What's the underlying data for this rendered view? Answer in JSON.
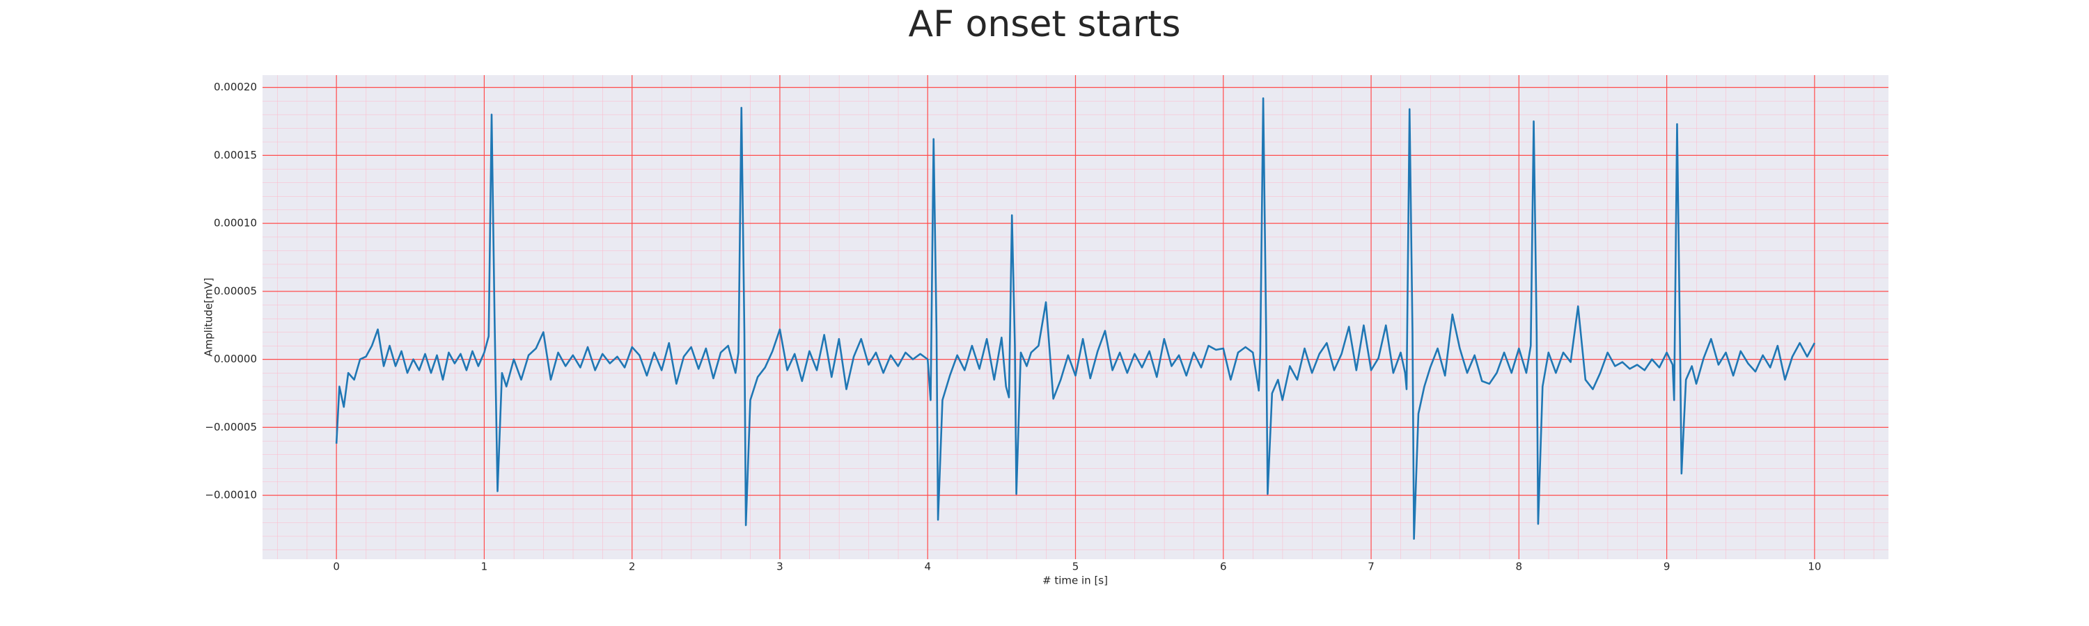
{
  "chart_data": {
    "type": "line",
    "title": "AF onset starts",
    "x_label": "# time in [s]",
    "y_label": "Amplitude[mV]",
    "xlim": [
      -0.5,
      10.5
    ],
    "ylim": [
      -0.000147,
      0.000209
    ],
    "xticks": [
      0,
      1,
      2,
      3,
      4,
      5,
      6,
      7,
      8,
      9,
      10
    ],
    "yticks": [
      {
        "value": -0.0001,
        "label": "−0.00010"
      },
      {
        "value": -5e-05,
        "label": "−0.00005"
      },
      {
        "value": 0,
        "label": "0.00000"
      },
      {
        "value": 5e-05,
        "label": "0.00005"
      },
      {
        "value": 0.0001,
        "label": "0.00010"
      },
      {
        "value": 0.00015,
        "label": "0.00015"
      },
      {
        "value": 0.0002,
        "label": "0.00020"
      }
    ],
    "grid": true,
    "minor_grid": true,
    "grid_color": "#ff4d4d",
    "minor_grid_color": "#ffb6c8",
    "background": "#eaeaf2",
    "series": [
      {
        "color": "#1f77b4",
        "x": [
          0,
          0.02,
          0.05,
          0.08,
          0.12,
          0.16,
          0.2,
          0.24,
          0.28,
          0.32,
          0.36,
          0.4,
          0.44,
          0.48,
          0.52,
          0.56,
          0.6,
          0.64,
          0.68,
          0.72,
          0.76,
          0.8,
          0.84,
          0.88,
          0.92,
          0.96,
          1.0,
          1.03,
          1.05,
          1.07,
          1.09,
          1.12,
          1.15,
          1.2,
          1.25,
          1.3,
          1.35,
          1.4,
          1.45,
          1.5,
          1.55,
          1.6,
          1.65,
          1.7,
          1.75,
          1.8,
          1.85,
          1.9,
          1.95,
          2.0,
          2.05,
          2.1,
          2.15,
          2.2,
          2.25,
          2.3,
          2.35,
          2.4,
          2.45,
          2.5,
          2.55,
          2.6,
          2.65,
          2.7,
          2.72,
          2.74,
          2.76,
          2.77,
          2.8,
          2.85,
          2.9,
          2.95,
          3.0,
          3.05,
          3.1,
          3.15,
          3.2,
          3.25,
          3.3,
          3.35,
          3.4,
          3.45,
          3.5,
          3.55,
          3.6,
          3.65,
          3.7,
          3.75,
          3.8,
          3.85,
          3.9,
          3.95,
          4.0,
          4.02,
          4.04,
          4.06,
          4.07,
          4.1,
          4.15,
          4.2,
          4.25,
          4.3,
          4.35,
          4.4,
          4.45,
          4.5,
          4.53,
          4.55,
          4.57,
          4.59,
          4.6,
          4.63,
          4.67,
          4.7,
          4.75,
          4.8,
          4.85,
          4.9,
          4.95,
          5.0,
          5.05,
          5.1,
          5.15,
          5.2,
          5.25,
          5.3,
          5.35,
          5.4,
          5.45,
          5.5,
          5.55,
          5.6,
          5.65,
          5.7,
          5.75,
          5.8,
          5.85,
          5.9,
          5.95,
          6.0,
          6.05,
          6.1,
          6.15,
          6.2,
          6.24,
          6.25,
          6.27,
          6.29,
          6.3,
          6.33,
          6.37,
          6.4,
          6.45,
          6.5,
          6.55,
          6.6,
          6.65,
          6.7,
          6.75,
          6.8,
          6.85,
          6.9,
          6.95,
          7.0,
          7.05,
          7.1,
          7.15,
          7.2,
          7.23,
          7.24,
          7.26,
          7.28,
          7.29,
          7.32,
          7.36,
          7.4,
          7.45,
          7.5,
          7.55,
          7.6,
          7.65,
          7.7,
          7.75,
          7.8,
          7.85,
          7.9,
          7.95,
          8.0,
          8.05,
          8.08,
          8.1,
          8.12,
          8.13,
          8.16,
          8.2,
          8.25,
          8.3,
          8.35,
          8.4,
          8.45,
          8.5,
          8.55,
          8.6,
          8.65,
          8.7,
          8.75,
          8.8,
          8.85,
          8.9,
          8.95,
          9.0,
          9.04,
          9.05,
          9.07,
          9.09,
          9.1,
          9.13,
          9.17,
          9.2,
          9.25,
          9.3,
          9.35,
          9.4,
          9.45,
          9.5,
          9.55,
          9.6,
          9.65,
          9.7,
          9.75,
          9.8,
          9.85,
          9.9,
          9.95,
          10.0
        ],
        "values": [
          -6.2e-05,
          -2e-05,
          -3.5e-05,
          -1e-05,
          -1.5e-05,
          0,
          2e-06,
          1e-05,
          2.2e-05,
          -5e-06,
          1e-05,
          -5e-06,
          6e-06,
          -1e-05,
          0,
          -8e-06,
          4e-06,
          -1e-05,
          3e-06,
          -1.5e-05,
          5e-06,
          -3e-06,
          4e-06,
          -8e-06,
          6e-06,
          -5e-06,
          5e-06,
          1.7e-05,
          0.00018,
          3e-05,
          -9.7e-05,
          -1e-05,
          -2e-05,
          0,
          -1.5e-05,
          3e-06,
          8e-06,
          2e-05,
          -1.5e-05,
          5e-06,
          -5e-06,
          3e-06,
          -6e-06,
          9e-06,
          -8e-06,
          4e-06,
          -3e-06,
          2e-06,
          -6e-06,
          9e-06,
          3e-06,
          -1.2e-05,
          5e-06,
          -8e-06,
          1.2e-05,
          -1.8e-05,
          2e-06,
          9e-06,
          -7e-06,
          8e-06,
          -1.4e-05,
          5e-06,
          1e-05,
          -1e-05,
          5e-06,
          0.000185,
          2e-05,
          -0.000122,
          -3e-05,
          -1.3e-05,
          -6e-06,
          6e-06,
          2.2e-05,
          -8e-06,
          4e-06,
          -1.6e-05,
          6e-06,
          -8e-06,
          1.8e-05,
          -1.3e-05,
          1.5e-05,
          -2.2e-05,
          2e-06,
          1.5e-05,
          -4e-06,
          5e-06,
          -1e-05,
          3e-06,
          -5e-06,
          5e-06,
          0,
          4e-06,
          0,
          -3e-05,
          0.000162,
          2e-05,
          -0.000118,
          -3e-05,
          -1.2e-05,
          3e-06,
          -8e-06,
          1e-05,
          -7e-06,
          1.5e-05,
          -1.5e-05,
          1.6e-05,
          -2e-05,
          -2.8e-05,
          0.000106,
          1e-05,
          -9.9e-05,
          5e-06,
          -5e-06,
          5e-06,
          1e-05,
          4.2e-05,
          -2.9e-05,
          -1.5e-05,
          3e-06,
          -1.2e-05,
          1.5e-05,
          -1.4e-05,
          6e-06,
          2.1e-05,
          -8e-06,
          5e-06,
          -1e-05,
          4e-06,
          -6e-06,
          6e-06,
          -1.3e-05,
          1.5e-05,
          -5e-06,
          3e-06,
          -1.2e-05,
          5e-06,
          -6e-06,
          1e-05,
          7e-06,
          8e-06,
          -1.5e-05,
          5e-06,
          9e-06,
          5e-06,
          -2.3e-05,
          5e-06,
          0.000192,
          2e-05,
          -9.9e-05,
          -2.5e-05,
          -1.5e-05,
          -3e-05,
          -5e-06,
          -1.5e-05,
          8e-06,
          -1e-05,
          4e-06,
          1.2e-05,
          -8e-06,
          4e-06,
          2.4e-05,
          -8e-06,
          2.5e-05,
          -8e-06,
          1e-06,
          2.5e-05,
          -1e-05,
          5e-06,
          -1e-05,
          -2.2e-05,
          0.000184,
          2e-05,
          -0.000132,
          -4e-05,
          -2e-05,
          -6e-06,
          8e-06,
          -1.2e-05,
          3.3e-05,
          8e-06,
          -1e-05,
          3e-06,
          -1.6e-05,
          -1.8e-05,
          -1e-05,
          5e-06,
          -1e-05,
          8e-06,
          -1e-05,
          1e-05,
          0.000175,
          2e-05,
          -0.000121,
          -2e-05,
          5e-06,
          -1e-05,
          5e-06,
          -2e-06,
          3.9e-05,
          -1.5e-05,
          -2.2e-05,
          -1e-05,
          5e-06,
          -5e-06,
          -2e-06,
          -7e-06,
          -4e-06,
          -8e-06,
          0,
          -6e-06,
          5e-06,
          -4e-06,
          -3e-05,
          0.000173,
          1e-05,
          -8.4e-05,
          -1.5e-05,
          -5e-06,
          -1.8e-05,
          1e-06,
          1.5e-05,
          -4e-06,
          5e-06,
          -1.2e-05,
          6e-06,
          -3e-06,
          -9e-06,
          3e-06,
          -6e-06,
          1e-05,
          -1.5e-05,
          2e-06,
          1.2e-05,
          2e-06,
          1.2e-05
        ]
      }
    ]
  }
}
